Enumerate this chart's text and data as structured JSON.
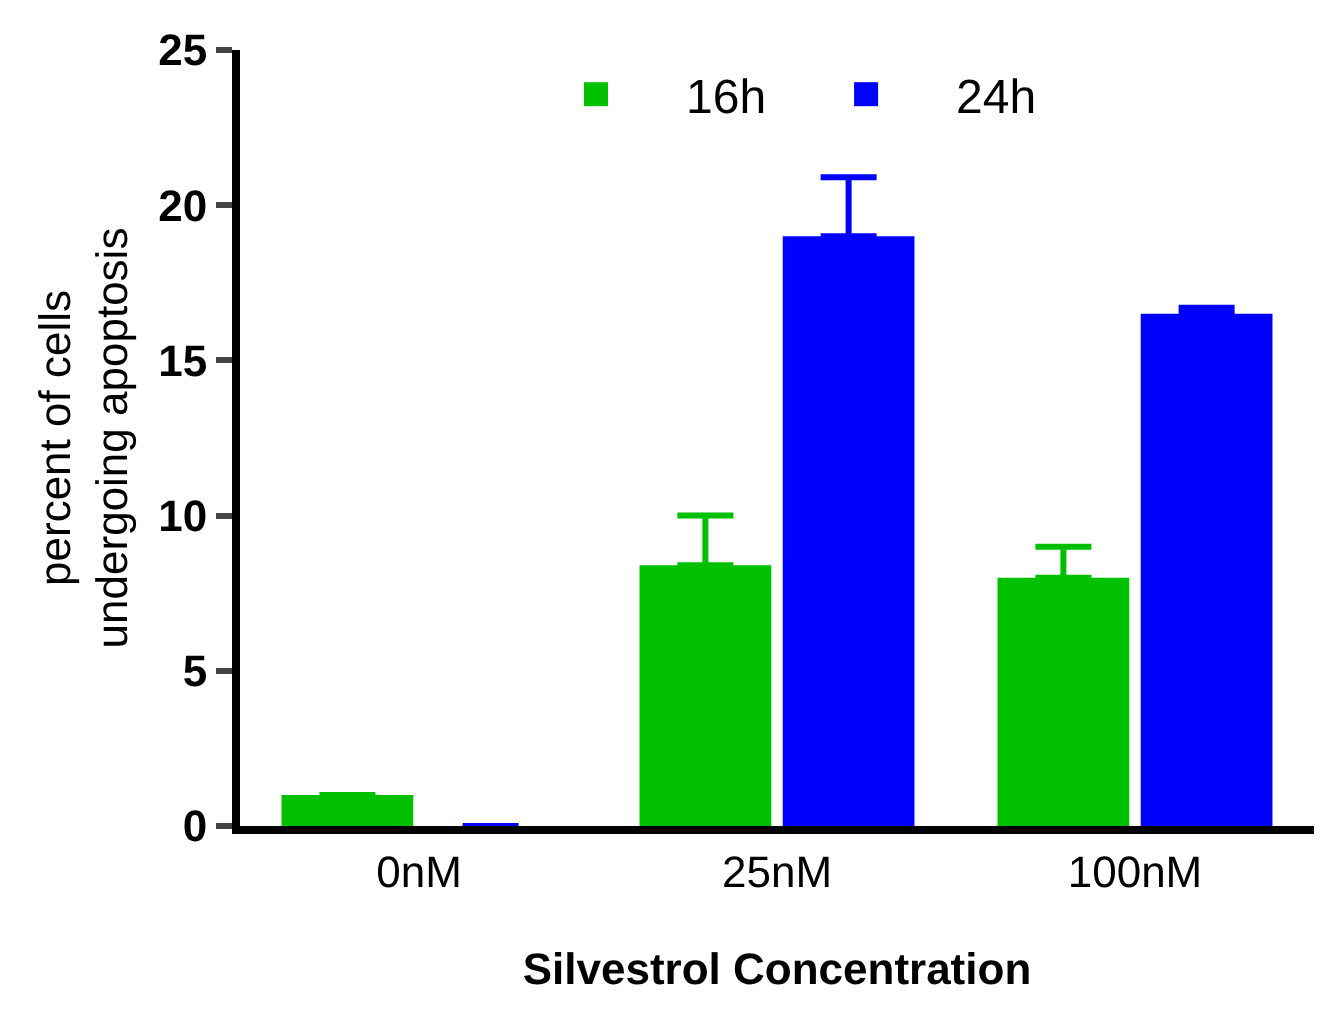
{
  "chart_data": {
    "type": "bar",
    "xlabel": "Silvestrol Concentration",
    "ylabel": "percent of cells\nundergoing apoptosis",
    "categories": [
      "0nM",
      "25nM",
      "100nM"
    ],
    "series": [
      {
        "name": "16h",
        "color": "#00c000",
        "values": [
          1.0,
          8.4,
          8.0
        ],
        "errors": [
          null,
          [
            8.4,
            10.0
          ],
          [
            8.0,
            9.0
          ]
        ]
      },
      {
        "name": "24h",
        "color": "#0000ff",
        "values": [
          0,
          19.0,
          16.5
        ],
        "errors": [
          null,
          [
            19.0,
            20.9
          ],
          [
            16.5,
            16.7
          ]
        ]
      }
    ],
    "ylim": [
      0,
      25
    ],
    "yticks": [
      0,
      5,
      10,
      15,
      20,
      25
    ],
    "grid": false,
    "legend": "top"
  }
}
